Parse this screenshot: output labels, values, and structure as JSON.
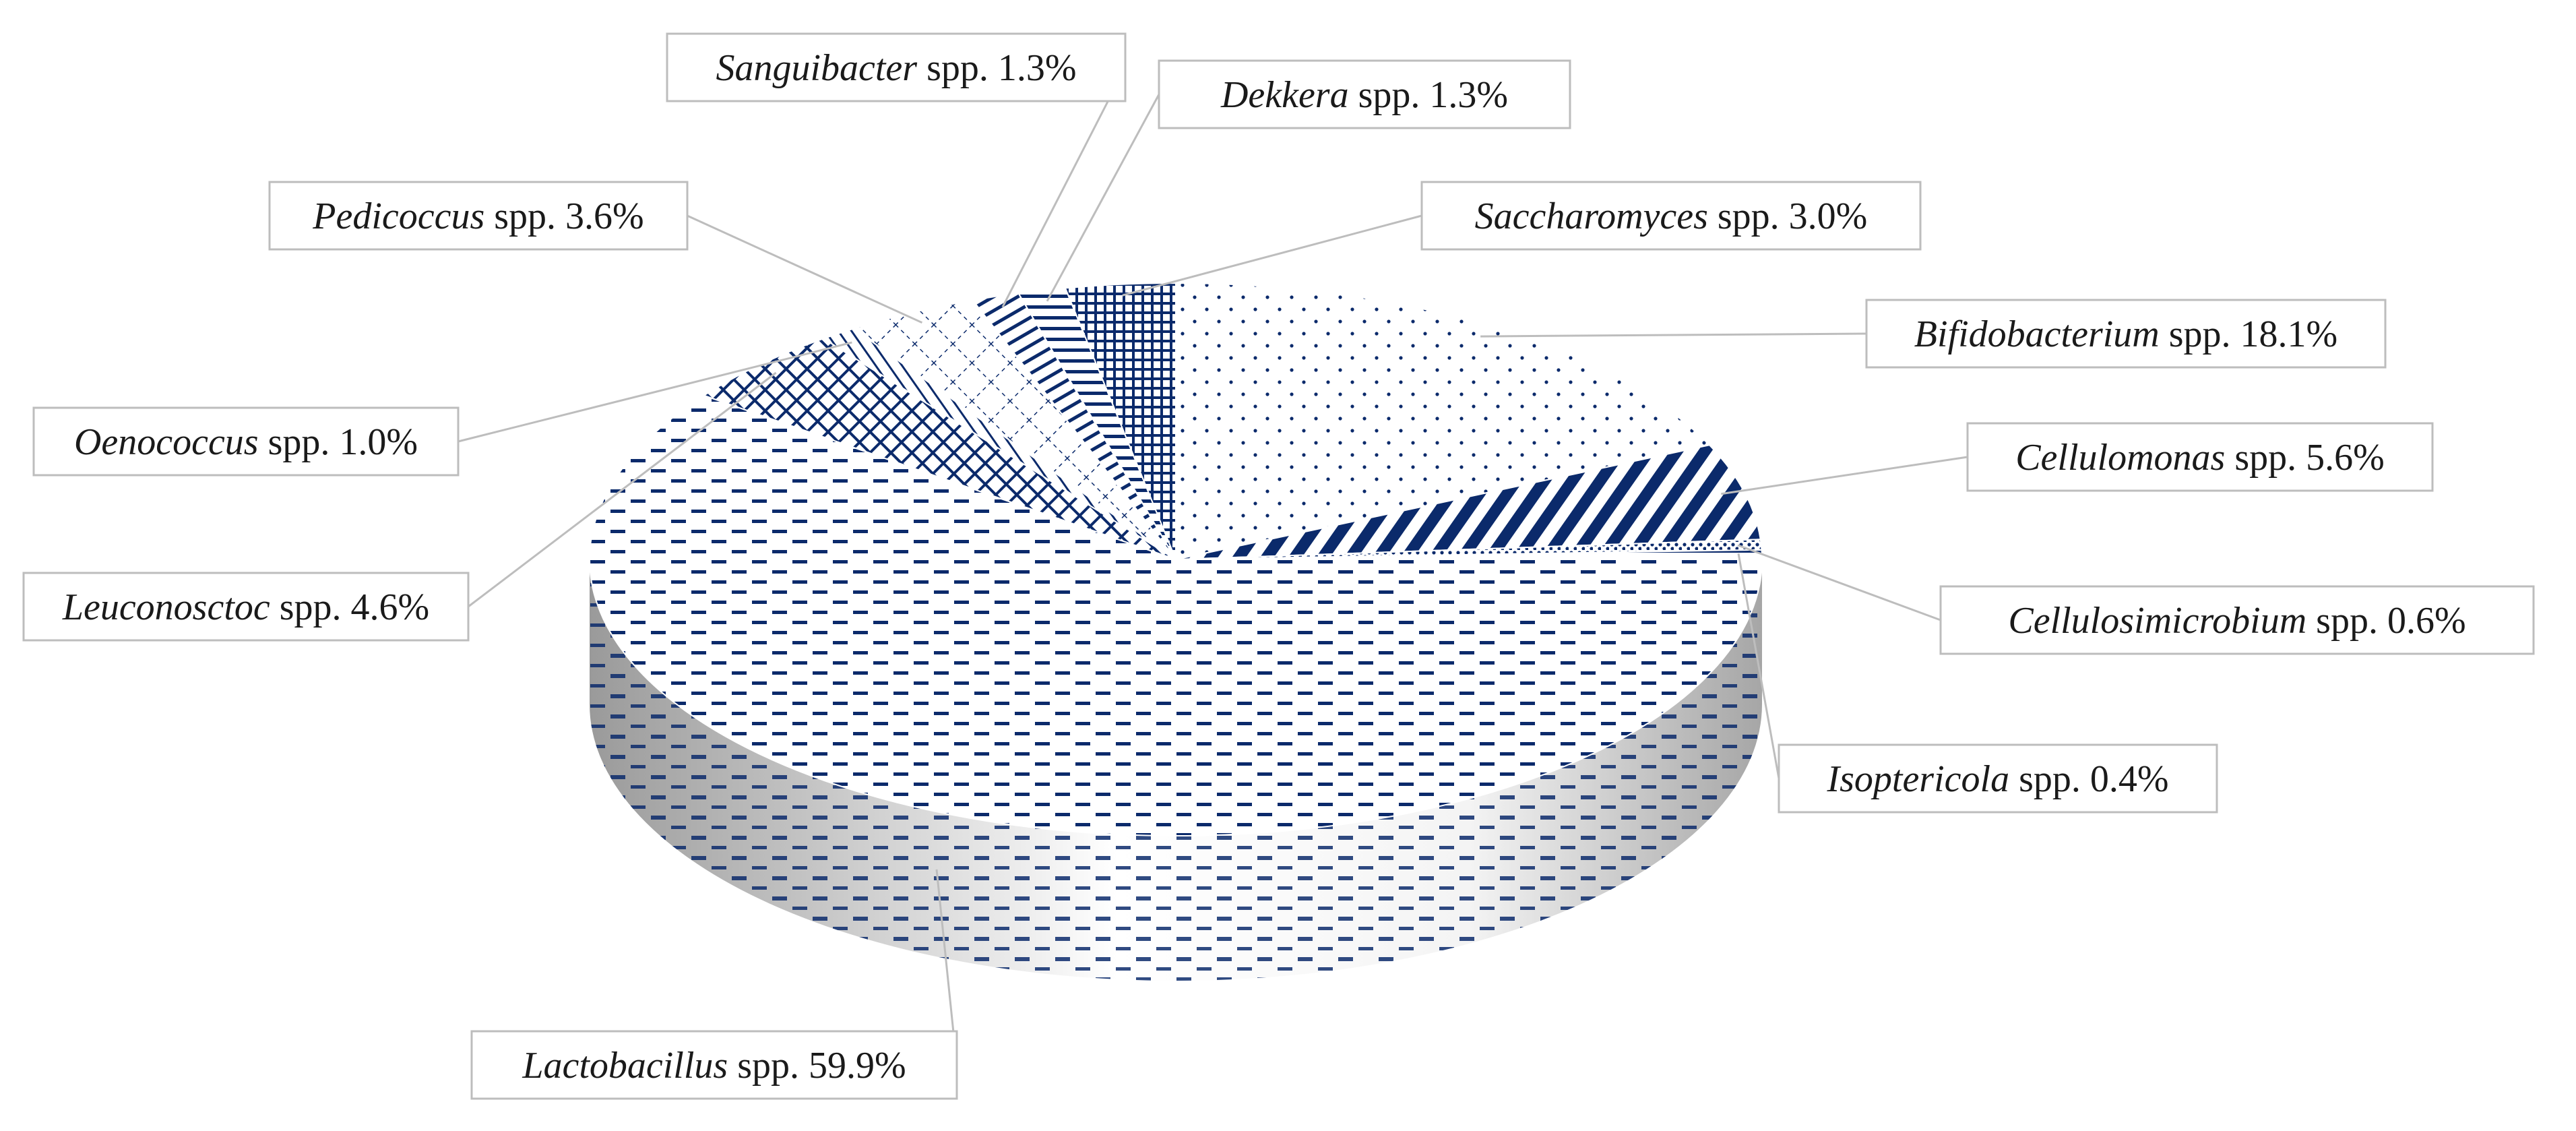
{
  "chart_data": {
    "type": "pie",
    "style": "3d",
    "unit_suffix": " spp. ",
    "legend": "none",
    "slices": [
      {
        "genus": "Bifidobacterium",
        "value": 18.1,
        "percent_label": "18.1%",
        "pattern": "dots"
      },
      {
        "genus": "Cellulomonas",
        "value": 5.6,
        "percent_label": "5.6%",
        "pattern": "diag-dense"
      },
      {
        "genus": "Cellulosimicrobium",
        "value": 0.6,
        "percent_label": "0.6%",
        "pattern": "dots-dense"
      },
      {
        "genus": "Isoptericola",
        "value": 0.4,
        "percent_label": "0.4%",
        "pattern": "horiz-light"
      },
      {
        "genus": "Lactobacillus",
        "value": 59.9,
        "percent_label": "59.9%",
        "pattern": "dashes"
      },
      {
        "genus": "Leuconosctoc",
        "value": 4.6,
        "percent_label": "4.6%",
        "pattern": "crosshatch-dense"
      },
      {
        "genus": "Oenococcus",
        "value": 1.0,
        "percent_label": "1.0%",
        "pattern": "diag-thin"
      },
      {
        "genus": "Pedicoccus",
        "value": 3.6,
        "percent_label": "3.6%",
        "pattern": "crosshatch-dotted"
      },
      {
        "genus": "Sanguibacter",
        "value": 1.3,
        "percent_label": "1.3%",
        "pattern": "diag-back"
      },
      {
        "genus": "Dekkera",
        "value": 1.3,
        "percent_label": "1.3%",
        "pattern": "horiz-lines"
      },
      {
        "genus": "Saccharomyces",
        "value": 3.0,
        "percent_label": "3.0%",
        "pattern": "grid"
      }
    ],
    "colors": {
      "ink": "#0b2a6b",
      "side_dark": "#9a9a9a",
      "side_light": "#ffffff",
      "label_border": "#bdbdbd"
    }
  }
}
